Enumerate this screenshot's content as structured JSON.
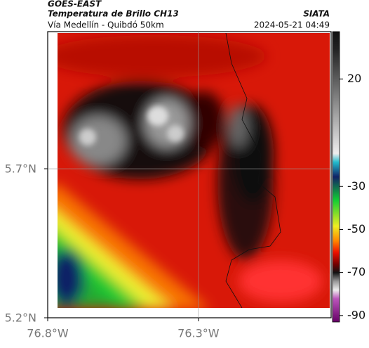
{
  "header": {
    "title": "GOES-EAST",
    "subtitle": "Temperatura de Brillo CH13",
    "source": "SIATA",
    "region": "Vía Medellín - Quibdó 50km",
    "timestamp": "2024-05-21 04:49"
  },
  "map": {
    "xlim": [
      -76.8,
      -75.86
    ],
    "ylim": [
      5.2,
      6.16
    ],
    "xticks": [
      {
        "value": -76.8,
        "label": "76.8°W"
      },
      {
        "value": -76.3,
        "label": "76.3°W"
      }
    ],
    "yticks": [
      {
        "value": 5.2,
        "label": "5.2°N"
      },
      {
        "value": 5.7,
        "label": "5.7°N"
      }
    ],
    "grid": true
  },
  "colorbar": {
    "clim": [
      -93,
      42
    ],
    "ticks": [
      20,
      -30,
      -50,
      -70,
      -90
    ]
  }
}
